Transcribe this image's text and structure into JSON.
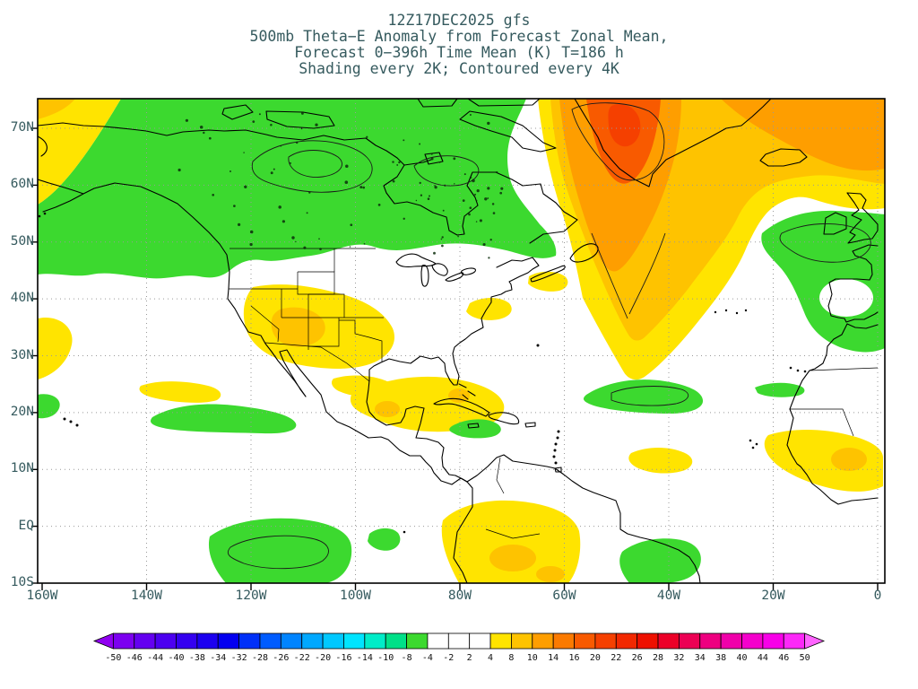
{
  "title": {
    "line1": "12Z17DEC2025 gfs",
    "line2": "500mb Theta−E Anomaly from Forecast Zonal Mean,",
    "line3": "Forecast 0−396h Time Mean (K) T=186 h",
    "line4": "Shading every 2K; Contoured every 4K"
  },
  "axes": {
    "y_ticks": [
      "70N",
      "60N",
      "50N",
      "40N",
      "30N",
      "20N",
      "10N",
      "EQ",
      "10S"
    ],
    "x_ticks": [
      "160W",
      "140W",
      "120W",
      "100W",
      "80W",
      "60W",
      "40W",
      "20W",
      "0"
    ]
  },
  "colorbar": {
    "labels": [
      "-50",
      "-46",
      "-44",
      "-40",
      "-38",
      "-34",
      "-32",
      "-28",
      "-26",
      "-22",
      "-20",
      "-16",
      "-14",
      "-10",
      "-8",
      "-4",
      "-2",
      "2",
      "4",
      "8",
      "10",
      "14",
      "16",
      "20",
      "22",
      "26",
      "28",
      "32",
      "34",
      "38",
      "40",
      "44",
      "46",
      "50"
    ],
    "colors": [
      "#9000f0",
      "#7c00f0",
      "#6400f0",
      "#4c00f0",
      "#3400f0",
      "#1c00f0",
      "#0400f0",
      "#0030f8",
      "#005cff",
      "#0084ff",
      "#00a8ff",
      "#00c8ff",
      "#00e4ff",
      "#00ecc8",
      "#00e088",
      "#3cd92f",
      "#ffffff",
      "#ffffff",
      "#ffffff",
      "#ffe400",
      "#fec300",
      "#fe9e00",
      "#fb7a00",
      "#f85a00",
      "#f54000",
      "#f22800",
      "#ee1000",
      "#ec0028",
      "#ec0054",
      "#ee0080",
      "#f000aa",
      "#f400cc",
      "#f800e8",
      "#fc28f8",
      "#ff64ff"
    ]
  },
  "palette": {
    "green": "#3cd92f",
    "yellow": "#ffe400",
    "gold": "#fec300",
    "orange": "#fe9e00",
    "orange_deep": "#fb7a00",
    "red_orange": "#f85a00",
    "red_core": "#f54000",
    "white": "#ffffff",
    "text": "#355a5e",
    "coast": "#000000",
    "grid": "#999999",
    "lake_dot": "#0b2d0b",
    "contour": "#1a1a1a"
  },
  "chart_data": {
    "type": "heatmap",
    "title": "500mb Theta-E Anomaly from Forecast Zonal Mean",
    "run": "12Z17DEC2025 gfs",
    "forecast_window": "Forecast 0-396h Time Mean (K)",
    "time_label": "T=186 h",
    "units": "K",
    "shading_interval_K": 2,
    "contour_interval_K": 4,
    "x_ticks": [
      "160W",
      "140W",
      "120W",
      "100W",
      "80W",
      "60W",
      "40W",
      "20W",
      "0"
    ],
    "y_ticks": [
      "70N",
      "60N",
      "50N",
      "40N",
      "30N",
      "20N",
      "10N",
      "EQ",
      "10S"
    ],
    "x_range": [
      "160W",
      "0"
    ],
    "y_range": [
      "10S",
      "75N"
    ],
    "grid": "dotted every 10 deg lat / 20 deg lon",
    "legend_position": "bottom colorbar with arrow ends",
    "colorbar_boundaries": [
      -50,
      -46,
      -44,
      -40,
      -38,
      -34,
      -32,
      -28,
      -26,
      -22,
      -20,
      -16,
      -14,
      -10,
      -8,
      -4,
      -2,
      2,
      4,
      8,
      10,
      14,
      16,
      20,
      22,
      26,
      28,
      32,
      34,
      38,
      40,
      44,
      46,
      50
    ],
    "features": [
      {
        "region": "Alaska / Canada / Hudson Bay",
        "lon": "150W-65W",
        "lat": "48N-75N",
        "anomaly_K": -8,
        "shade": "green"
      },
      {
        "region": "Greenland / North Atlantic core",
        "lon": "60W-25W",
        "lat": "55N-75N",
        "anomaly_K": 18,
        "shade": "orange-red"
      },
      {
        "region": "Northeast corner (Norwegian Sea)",
        "lon": "30W-0",
        "lat": "65N-75N",
        "anomaly_K": 12,
        "shade": "orange"
      },
      {
        "region": "Western United States",
        "lon": "120W-95W",
        "lat": "30N-42N",
        "anomaly_K": 7,
        "shade": "yellow-gold"
      },
      {
        "region": "Gulf of Mexico / Caribbean",
        "lon": "100W-70W",
        "lat": "18N-28N",
        "anomaly_K": 6,
        "shade": "yellow"
      },
      {
        "region": "Mid-Atlantic warm tongue",
        "lon": "50W-35W",
        "lat": "25N-55N",
        "anomaly_K": 8,
        "shade": "yellow-gold"
      },
      {
        "region": "Eastern Atlantic / western Europe / Morocco",
        "lon": "25W-0",
        "lat": "30N-55N",
        "anomaly_K": -6,
        "shade": "green"
      },
      {
        "region": "Tropical central Atlantic",
        "lon": "48W-22W",
        "lat": "17N-24N",
        "anomaly_K": -6,
        "shade": "green"
      },
      {
        "region": "Eastern tropical Pacific band",
        "lon": "138W-110W",
        "lat": "8N-12N",
        "anomaly_K": -6,
        "shade": "green"
      },
      {
        "region": "Equatorial east Pacific",
        "lon": "128W-100W",
        "lat": "10S-2N",
        "anomaly_K": -6,
        "shade": "green"
      },
      {
        "region": "South America interior",
        "lon": "82W-58W",
        "lat": "10S-3N",
        "anomaly_K": 6,
        "shade": "yellow-gold"
      },
      {
        "region": "West Africa",
        "lon": "22W-0",
        "lat": "5N-18N",
        "anomaly_K": 5,
        "shade": "yellow"
      },
      {
        "region": "Equatorial Atlantic",
        "lon": "50W-34W",
        "lat": "8S-0",
        "anomaly_K": -5,
        "shade": "green"
      },
      {
        "region": "Northeast Pacific lobe",
        "lon": "160W-135W",
        "lat": "40N-55N",
        "anomaly_K": -6,
        "shade": "green"
      },
      {
        "region": "Top-left Pacific corner",
        "lon": "160W-145W",
        "lat": "58N-75N",
        "anomaly_K": 6,
        "shade": "yellow"
      }
    ]
  }
}
